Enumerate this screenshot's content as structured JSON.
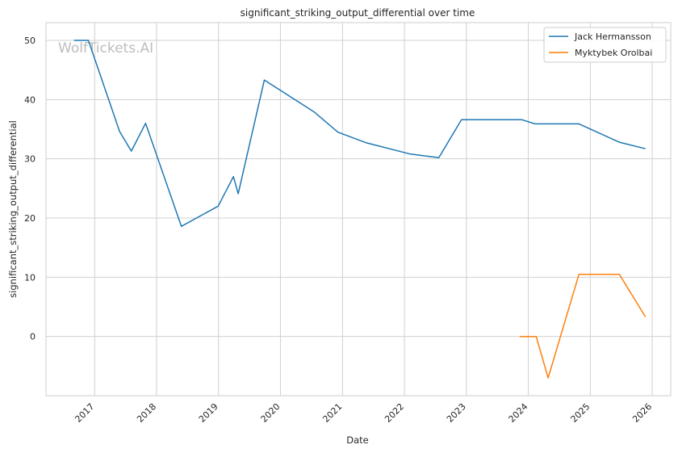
{
  "watermark": "WolfTickets.AI",
  "chart_data": {
    "type": "line",
    "title": "significant_striking_output_differential over time",
    "xlabel": "Date",
    "ylabel": "significant_striking_output_differential",
    "x_ticks": [
      "2017",
      "2018",
      "2019",
      "2020",
      "2021",
      "2022",
      "2023",
      "2024",
      "2025",
      "2026"
    ],
    "y_ticks": [
      0,
      10,
      20,
      30,
      40,
      50
    ],
    "xlim": [
      "2016-03-20",
      "2026-04-20"
    ],
    "ylim": [
      -10,
      53
    ],
    "grid": true,
    "legend_position": "top-right",
    "series": [
      {
        "name": "Jack Hermansson",
        "color": "#1f77b4",
        "points": [
          [
            "2016-09-01",
            50.0
          ],
          [
            "2016-11-25",
            50.0
          ],
          [
            "2017-05-28",
            34.6
          ],
          [
            "2017-08-05",
            31.3
          ],
          [
            "2017-10-28",
            36.0
          ],
          [
            "2018-05-27",
            18.6
          ],
          [
            "2018-12-30",
            22.0
          ],
          [
            "2019-03-30",
            27.0
          ],
          [
            "2019-04-27",
            24.1
          ],
          [
            "2019-09-28",
            43.3
          ],
          [
            "2020-07-18",
            37.9
          ],
          [
            "2020-12-05",
            34.5
          ],
          [
            "2021-05-22",
            32.7
          ],
          [
            "2022-02-05",
            30.8
          ],
          [
            "2022-07-23",
            30.2
          ],
          [
            "2022-12-03",
            36.6
          ],
          [
            "2023-11-25",
            36.6
          ],
          [
            "2024-02-10",
            35.9
          ],
          [
            "2024-10-26",
            35.9
          ],
          [
            "2025-06-21",
            32.8
          ],
          [
            "2025-11-22",
            31.7
          ]
        ]
      },
      {
        "name": "Myktybek Orolbai",
        "color": "#ff7f0e",
        "points": [
          [
            "2023-11-11",
            0.0
          ],
          [
            "2024-02-17",
            0.0
          ],
          [
            "2024-04-27",
            -7.0
          ],
          [
            "2024-10-26",
            10.5
          ],
          [
            "2025-06-21",
            10.5
          ],
          [
            "2025-11-22",
            3.3
          ]
        ]
      }
    ]
  }
}
